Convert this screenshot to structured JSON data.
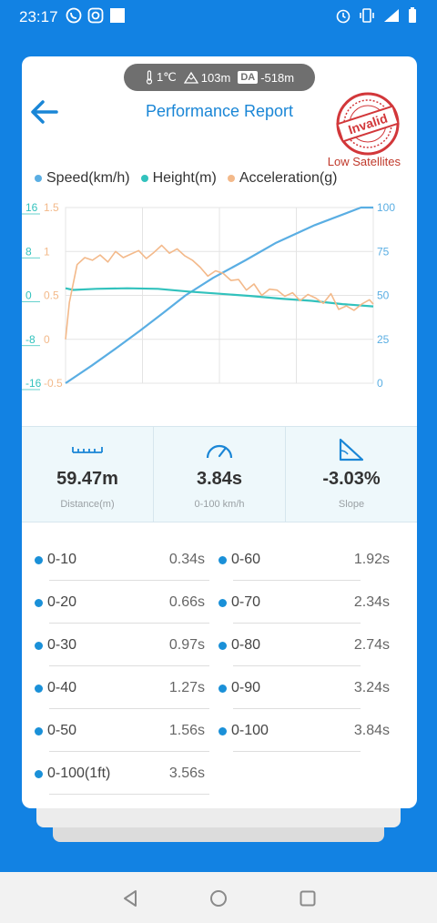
{
  "status": {
    "time": "23:17"
  },
  "weather": {
    "temperature": "1℃",
    "altitude": "103m",
    "da_label": "DA",
    "density_altitude": "-518m"
  },
  "header": {
    "title": "Performance Report",
    "stamp_text": "Invalid",
    "stamp_note": "Low Satellites"
  },
  "legend": [
    {
      "label": "Speed(km/h)",
      "color": "#5aaee3"
    },
    {
      "label": "Height(m)",
      "color": "#32c2bd"
    },
    {
      "label": "Acceleration(g)",
      "color": "#f3b98a"
    }
  ],
  "chart_data": {
    "type": "line",
    "axes": {
      "height_ticks": [
        "16",
        "8",
        "0",
        "-8",
        "-16"
      ],
      "accel_ticks": [
        "1.5",
        "1",
        "0.5",
        "0",
        "-0.5"
      ],
      "speed_ticks": [
        "100",
        "75",
        "50",
        "25",
        "0"
      ],
      "height_range": [
        -16,
        16
      ],
      "accel_range": [
        -0.5,
        1.5
      ],
      "speed_range": [
        0,
        100
      ],
      "time_range": [
        0,
        4
      ]
    },
    "series": [
      {
        "name": "Speed(km/h)",
        "color": "#5aaee3",
        "x": [
          0,
          0.34,
          0.66,
          0.97,
          1.27,
          1.56,
          1.92,
          2.34,
          2.74,
          3.24,
          3.84,
          4.0
        ],
        "y": [
          0,
          10,
          20,
          30,
          40,
          50,
          60,
          70,
          80,
          90,
          100,
          100
        ]
      },
      {
        "name": "Height(m)",
        "color": "#32c2bd",
        "x": [
          0,
          0.1,
          0.4,
          0.8,
          1.2,
          1.6,
          2.0,
          2.4,
          2.8,
          3.2,
          3.6,
          4.0
        ],
        "y": [
          1.3,
          1.0,
          1.2,
          1.3,
          1.2,
          0.7,
          0.3,
          -0.1,
          -0.6,
          -1.0,
          -1.6,
          -2.0
        ]
      },
      {
        "name": "Acceleration(g)",
        "color": "#f3b98a",
        "x": [
          0,
          0.05,
          0.15,
          0.25,
          0.35,
          0.45,
          0.55,
          0.65,
          0.75,
          0.85,
          0.95,
          1.05,
          1.15,
          1.25,
          1.35,
          1.45,
          1.55,
          1.65,
          1.75,
          1.85,
          1.95,
          2.05,
          2.15,
          2.25,
          2.35,
          2.45,
          2.55,
          2.65,
          2.75,
          2.85,
          2.95,
          3.05,
          3.15,
          3.25,
          3.35,
          3.45,
          3.55,
          3.65,
          3.75,
          3.85,
          3.95,
          4.0
        ],
        "y": [
          0.0,
          0.42,
          0.85,
          0.93,
          0.9,
          0.96,
          0.88,
          1.0,
          0.93,
          0.97,
          1.01,
          0.92,
          0.99,
          1.07,
          0.98,
          1.03,
          0.95,
          0.9,
          0.82,
          0.72,
          0.78,
          0.75,
          0.67,
          0.68,
          0.56,
          0.63,
          0.5,
          0.57,
          0.56,
          0.49,
          0.53,
          0.44,
          0.51,
          0.47,
          0.41,
          0.52,
          0.34,
          0.38,
          0.33,
          0.4,
          0.45,
          0.4
        ]
      }
    ]
  },
  "stats": [
    {
      "value": "59.47m",
      "label": "Distance(m)",
      "icon": "ruler-icon"
    },
    {
      "value": "3.84s",
      "label": "0-100 km/h",
      "icon": "speedometer-icon"
    },
    {
      "value": "-3.03%",
      "label": "Slope",
      "icon": "slope-icon"
    }
  ],
  "splits": [
    {
      "range": "0-10",
      "time": "0.34s"
    },
    {
      "range": "0-60",
      "time": "1.92s"
    },
    {
      "range": "0-20",
      "time": "0.66s"
    },
    {
      "range": "0-70",
      "time": "2.34s"
    },
    {
      "range": "0-30",
      "time": "0.97s"
    },
    {
      "range": "0-80",
      "time": "2.74s"
    },
    {
      "range": "0-40",
      "time": "1.27s"
    },
    {
      "range": "0-90",
      "time": "3.24s"
    },
    {
      "range": "0-50",
      "time": "1.56s"
    },
    {
      "range": "0-100",
      "time": "3.84s"
    },
    {
      "range": "0-100(1ft)",
      "time": "3.56s"
    }
  ]
}
